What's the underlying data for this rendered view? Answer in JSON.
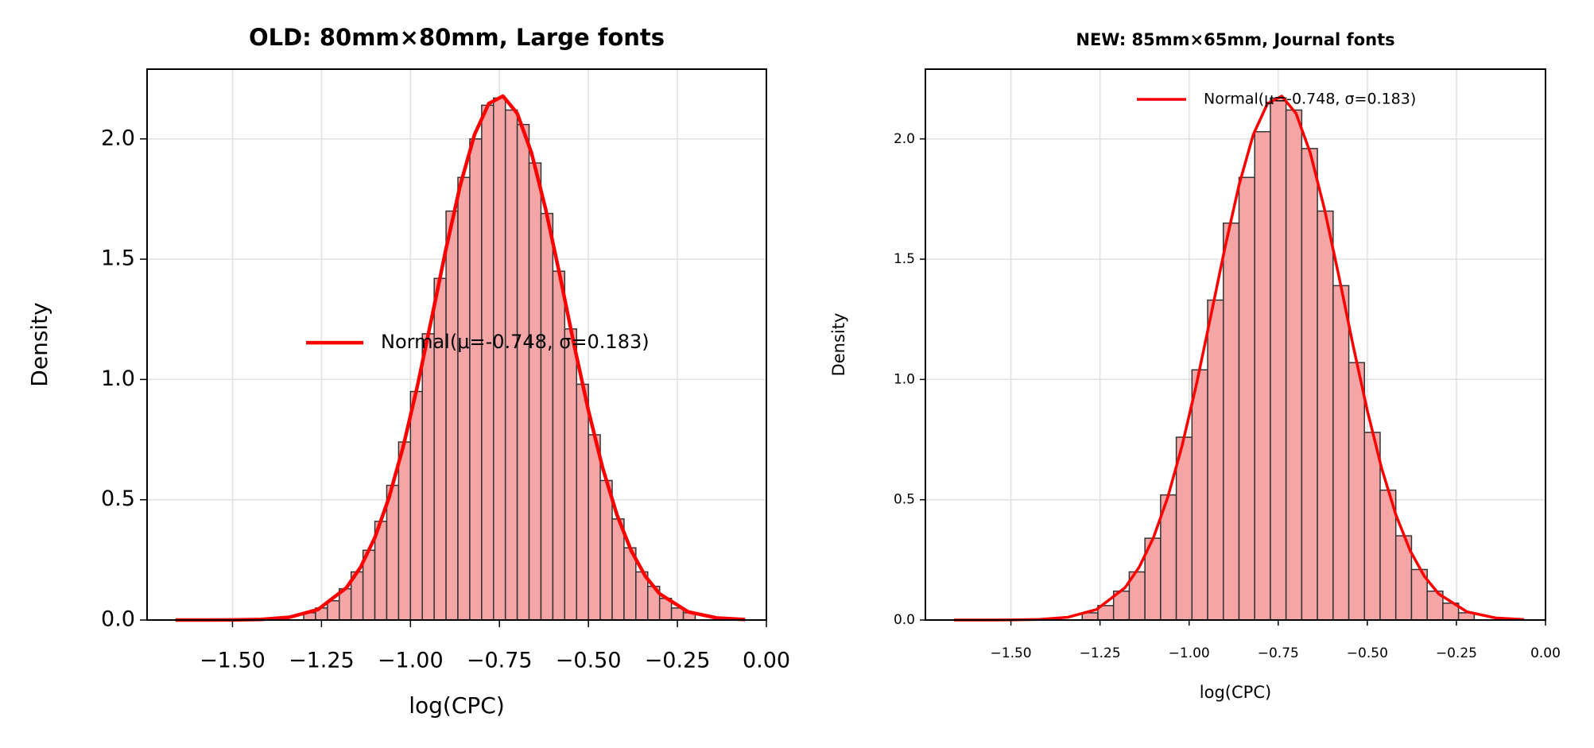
{
  "chart_data": [
    {
      "type": "histogram",
      "title": "OLD: 80mm×80mm, Large fonts",
      "xlabel": "log(CPC)",
      "ylabel": "Density",
      "bins": [
        -1.3,
        -1.2667,
        -1.2333,
        -1.2,
        -1.1667,
        -1.1333,
        -1.1,
        -1.0667,
        -1.0333,
        -1.0,
        -0.9667,
        -0.9333,
        -0.9,
        -0.8667,
        -0.8333,
        -0.8,
        -0.7667,
        -0.7333,
        -0.7,
        -0.6667,
        -0.6333,
        -0.6,
        -0.5667,
        -0.5333,
        -0.5,
        -0.4667,
        -0.4333,
        -0.4,
        -0.3667,
        -0.3333,
        -0.3,
        -0.2667,
        -0.2333,
        -0.2
      ],
      "values": [
        0.03,
        0.05,
        0.08,
        0.13,
        0.2,
        0.29,
        0.41,
        0.56,
        0.74,
        0.95,
        1.19,
        1.42,
        1.7,
        1.84,
        2.0,
        2.14,
        2.17,
        2.12,
        2.06,
        1.9,
        1.69,
        1.45,
        1.21,
        0.98,
        0.77,
        0.58,
        0.42,
        0.3,
        0.2,
        0.14,
        0.09,
        0.05,
        0.03
      ],
      "color": "#f4a6a6",
      "edgecolor": "#333333",
      "series": [
        {
          "name": "Normal(μ=-0.748, σ=0.183)",
          "color": "#ff0000",
          "x": [
            -1.66,
            -1.58,
            -1.5,
            -1.42,
            -1.34,
            -1.26,
            -1.18,
            -1.14,
            -1.1,
            -1.06,
            -1.02,
            -0.98,
            -0.94,
            -0.9,
            -0.86,
            -0.82,
            -0.78,
            -0.74,
            -0.7,
            -0.66,
            -0.62,
            -0.58,
            -0.54,
            -0.5,
            -0.46,
            -0.42,
            -0.38,
            -0.34,
            -0.3,
            -0.22,
            -0.14,
            -0.06
          ],
          "values": [
            0.0,
            0.0001,
            0.0005,
            0.0026,
            0.0116,
            0.0435,
            0.134,
            0.22,
            0.343,
            0.51,
            0.723,
            0.976,
            1.258,
            1.544,
            1.808,
            2.018,
            2.147,
            2.178,
            2.106,
            1.942,
            1.707,
            1.431,
            1.142,
            0.871,
            0.632,
            0.438,
            0.289,
            0.182,
            0.109,
            0.034,
            0.0087,
            0.0019
          ]
        }
      ],
      "xlim": [
        -1.74,
        0.0
      ],
      "ylim": [
        0,
        2.29
      ],
      "xticks": [
        {
          "value": -1.5,
          "label": "−1.50"
        },
        {
          "value": -1.25,
          "label": "−1.25"
        },
        {
          "value": -1.0,
          "label": "−1.00"
        },
        {
          "value": -0.75,
          "label": "−0.75"
        },
        {
          "value": -0.5,
          "label": "−0.50"
        },
        {
          "value": -0.25,
          "label": "−0.25"
        },
        {
          "value": 0.0,
          "label": "0.00"
        }
      ],
      "yticks": [
        {
          "value": 0,
          "label": "0.0"
        },
        0.5,
        {
          "value": 1,
          "label": "1.0"
        },
        1.5,
        {
          "value": 2,
          "label": "2.0"
        }
      ],
      "grid": true,
      "legend": "center right"
    },
    {
      "type": "histogram",
      "title": "NEW: 85mm×65mm, Journal fonts",
      "xlabel": "log(CPC)",
      "ylabel": "Density",
      "bins": [
        -1.3,
        -1.256,
        -1.212,
        -1.168,
        -1.124,
        -1.08,
        -1.036,
        -0.992,
        -0.948,
        -0.904,
        -0.86,
        -0.816,
        -0.772,
        -0.728,
        -0.684,
        -0.64,
        -0.596,
        -0.552,
        -0.508,
        -0.464,
        -0.42,
        -0.376,
        -0.332,
        -0.288,
        -0.244,
        -0.2
      ],
      "values": [
        0.03,
        0.06,
        0.12,
        0.2,
        0.34,
        0.52,
        0.76,
        1.04,
        1.33,
        1.65,
        1.84,
        2.03,
        2.17,
        2.12,
        1.96,
        1.7,
        1.39,
        1.07,
        0.78,
        0.54,
        0.35,
        0.21,
        0.12,
        0.07,
        0.03
      ],
      "color": "#f4a6a6",
      "edgecolor": "#333333",
      "series": [
        {
          "name": "Normal(μ=-0.748, σ=0.183)",
          "color": "#ff0000",
          "x": [
            -1.66,
            -1.58,
            -1.5,
            -1.42,
            -1.34,
            -1.26,
            -1.18,
            -1.14,
            -1.1,
            -1.06,
            -1.02,
            -0.98,
            -0.94,
            -0.9,
            -0.86,
            -0.82,
            -0.78,
            -0.74,
            -0.7,
            -0.66,
            -0.62,
            -0.58,
            -0.54,
            -0.5,
            -0.46,
            -0.42,
            -0.38,
            -0.34,
            -0.3,
            -0.22,
            -0.14,
            -0.06
          ],
          "values": [
            0.0,
            0.0001,
            0.0005,
            0.0026,
            0.0116,
            0.0435,
            0.134,
            0.22,
            0.343,
            0.51,
            0.723,
            0.976,
            1.258,
            1.544,
            1.808,
            2.018,
            2.147,
            2.178,
            2.106,
            1.942,
            1.707,
            1.431,
            1.142,
            0.871,
            0.632,
            0.438,
            0.289,
            0.182,
            0.109,
            0.034,
            0.0087,
            0.0019
          ]
        }
      ],
      "xlim": [
        -1.74,
        0.0
      ],
      "ylim": [
        0,
        2.29
      ],
      "xticks": [
        {
          "value": -1.5,
          "label": "−1.50"
        },
        {
          "value": -1.25,
          "label": "−1.25"
        },
        {
          "value": -1.0,
          "label": "−1.00"
        },
        {
          "value": -0.75,
          "label": "−0.75"
        },
        {
          "value": -0.5,
          "label": "−0.50"
        },
        {
          "value": -0.25,
          "label": "−0.25"
        },
        {
          "value": 0.0,
          "label": "0.00"
        }
      ],
      "yticks": [
        {
          "value": 0,
          "label": "0.0"
        },
        0.5,
        {
          "value": 1,
          "label": "1.0"
        },
        1.5,
        {
          "value": 2,
          "label": "2.0"
        }
      ],
      "grid": true,
      "legend": "upper right"
    }
  ]
}
